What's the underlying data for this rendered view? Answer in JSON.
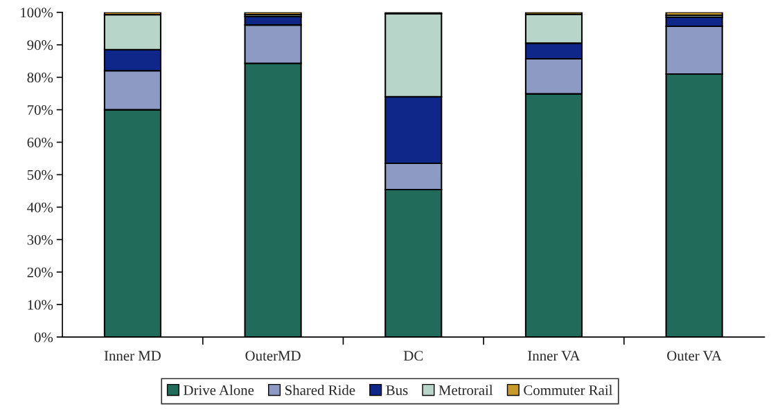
{
  "chart_data": {
    "type": "bar",
    "stacked": true,
    "categories": [
      "Inner MD",
      "OuterMD",
      "DC",
      "Inner VA",
      "Outer VA"
    ],
    "series": [
      {
        "name": "Drive Alone",
        "color": "#216b5b",
        "values": [
          70.0,
          84.3,
          45.4,
          74.9,
          81.0
        ]
      },
      {
        "name": "Shared Ride",
        "color": "#8c9ac4",
        "values": [
          12.0,
          11.8,
          8.1,
          10.8,
          14.7
        ]
      },
      {
        "name": "Bus",
        "color": "#10278a",
        "values": [
          6.5,
          2.6,
          20.5,
          4.8,
          2.8
        ]
      },
      {
        "name": "Metrorail",
        "color": "#b8d5c9",
        "values": [
          10.8,
          0.6,
          25.6,
          8.9,
          0.6
        ]
      },
      {
        "name": "Commuter Rail",
        "color": "#c89a2a",
        "values": [
          0.7,
          0.7,
          0.4,
          0.6,
          0.9
        ]
      }
    ],
    "ylim": [
      0,
      100
    ],
    "yticks": [
      {
        "value": 0,
        "label": "0%"
      },
      {
        "value": 10,
        "label": "10%"
      },
      {
        "value": 20,
        "label": "20%"
      },
      {
        "value": 30,
        "label": "30%"
      },
      {
        "value": 40,
        "label": "40%"
      },
      {
        "value": 50,
        "label": "50%"
      },
      {
        "value": 60,
        "label": "60%"
      },
      {
        "value": 70,
        "label": "70%"
      },
      {
        "value": 80,
        "label": "80%"
      },
      {
        "value": 90,
        "label": "90%"
      },
      {
        "value": 100,
        "label": "100%"
      }
    ],
    "grid": false,
    "legend": "bottom"
  }
}
